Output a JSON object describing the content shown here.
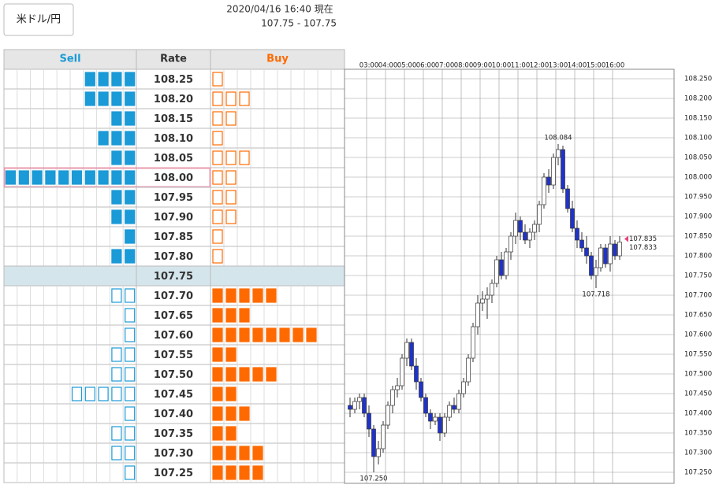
{
  "header": {
    "pair": "米ドル/円",
    "timestamp": "2020/04/16 16:40 現在",
    "rate_range": "107.75 - 107.75"
  },
  "order_book": {
    "columns": [
      "Sell",
      "Rate",
      "Buy"
    ],
    "highlighted_rate": "108.00",
    "rows": [
      {
        "rate": "108.25",
        "sell": 4,
        "buy": 1
      },
      {
        "rate": "108.20",
        "sell": 4,
        "buy": 3
      },
      {
        "rate": "108.15",
        "sell": 2,
        "buy": 2
      },
      {
        "rate": "108.10",
        "sell": 3,
        "buy": 1
      },
      {
        "rate": "108.05",
        "sell": 2,
        "buy": 3
      },
      {
        "rate": "108.00",
        "sell": 10,
        "buy": 2
      },
      {
        "rate": "107.95",
        "sell": 2,
        "buy": 2
      },
      {
        "rate": "107.90",
        "sell": 2,
        "buy": 2
      },
      {
        "rate": "107.85",
        "sell": 1,
        "buy": 1
      },
      {
        "rate": "107.80",
        "sell": 2,
        "buy": 1
      },
      {
        "rate": "107.75"
      },
      {
        "rate": "107.70",
        "sell": 2,
        "buy": 5
      },
      {
        "rate": "107.65",
        "sell": 1,
        "buy": 3
      },
      {
        "rate": "107.60",
        "sell": 1,
        "buy": 8
      },
      {
        "rate": "107.55",
        "sell": 2,
        "buy": 2
      },
      {
        "rate": "107.50",
        "sell": 2,
        "buy": 5
      },
      {
        "rate": "107.45",
        "sell": 5,
        "buy": 2
      },
      {
        "rate": "107.40",
        "sell": 1,
        "buy": 3
      },
      {
        "rate": "107.35",
        "sell": 2,
        "buy": 2
      },
      {
        "rate": "107.30",
        "sell": 2,
        "buy": 4
      },
      {
        "rate": "107.25",
        "sell": 1,
        "buy": 4
      }
    ]
  },
  "chart_data": {
    "type": "candlestick",
    "up_color": "#ffffff",
    "down_color": "#1f33cc",
    "categories": [
      null,
      null,
      null,
      null,
      "03:00",
      null,
      null,
      null,
      "04:00",
      null,
      null,
      null,
      "05:00",
      null,
      null,
      null,
      "06:00",
      null,
      null,
      null,
      "07:00",
      null,
      null,
      null,
      "08:00",
      null,
      null,
      null,
      "09:00",
      null,
      null,
      null,
      "10:00",
      null,
      null,
      null,
      "11:00",
      null,
      null,
      null,
      "12:00",
      null,
      null,
      null,
      "13:00",
      null,
      null,
      null,
      "14:00",
      null,
      null,
      null,
      "15:00",
      null,
      null,
      null,
      "16:00",
      null
    ],
    "ohlc": [
      [
        107.42,
        107.44,
        107.39,
        107.41
      ],
      [
        107.41,
        107.44,
        107.4,
        107.43
      ],
      [
        107.43,
        107.45,
        107.41,
        107.44
      ],
      [
        107.44,
        107.45,
        107.39,
        107.4
      ],
      [
        107.4,
        107.42,
        107.34,
        107.36
      ],
      [
        107.36,
        107.37,
        107.25,
        107.29
      ],
      [
        107.29,
        107.33,
        107.27,
        107.31
      ],
      [
        107.31,
        107.38,
        107.3,
        107.37
      ],
      [
        107.37,
        107.43,
        107.36,
        107.42
      ],
      [
        107.42,
        107.47,
        107.4,
        107.46
      ],
      [
        107.46,
        107.49,
        107.44,
        107.47
      ],
      [
        107.47,
        107.55,
        107.46,
        107.54
      ],
      [
        107.54,
        107.59,
        107.52,
        107.58
      ],
      [
        107.58,
        107.59,
        107.51,
        107.52
      ],
      [
        107.52,
        107.54,
        107.46,
        107.48
      ],
      [
        107.48,
        107.49,
        107.43,
        107.44
      ],
      [
        107.44,
        107.45,
        107.39,
        107.4
      ],
      [
        107.4,
        107.41,
        107.36,
        107.38
      ],
      [
        107.38,
        107.4,
        107.37,
        107.39
      ],
      [
        107.39,
        107.4,
        107.33,
        107.35
      ],
      [
        107.35,
        107.4,
        107.34,
        107.39
      ],
      [
        107.39,
        107.43,
        107.38,
        107.42
      ],
      [
        107.42,
        107.44,
        107.4,
        107.41
      ],
      [
        107.41,
        107.46,
        107.4,
        107.45
      ],
      [
        107.45,
        107.49,
        107.44,
        107.48
      ],
      [
        107.48,
        107.55,
        107.47,
        107.54
      ],
      [
        107.54,
        107.63,
        107.53,
        107.62
      ],
      [
        107.62,
        107.7,
        107.6,
        107.68
      ],
      [
        107.68,
        107.71,
        107.66,
        107.69
      ],
      [
        107.69,
        107.72,
        107.64,
        107.7
      ],
      [
        107.7,
        107.74,
        107.68,
        107.73
      ],
      [
        107.73,
        107.8,
        107.72,
        107.79
      ],
      [
        107.79,
        107.81,
        107.74,
        107.75
      ],
      [
        107.75,
        107.82,
        107.74,
        107.81
      ],
      [
        107.81,
        107.86,
        107.79,
        107.85
      ],
      [
        107.85,
        107.91,
        107.83,
        107.89
      ],
      [
        107.89,
        107.9,
        107.84,
        107.86
      ],
      [
        107.86,
        107.88,
        107.83,
        107.84
      ],
      [
        107.84,
        107.87,
        107.82,
        107.86
      ],
      [
        107.86,
        107.89,
        107.84,
        107.88
      ],
      [
        107.88,
        107.94,
        107.86,
        107.93
      ],
      [
        107.93,
        108.01,
        107.92,
        108.0
      ],
      [
        108.0,
        108.02,
        107.96,
        107.98
      ],
      [
        107.98,
        108.06,
        107.97,
        108.05
      ],
      [
        108.05,
        108.084,
        108.03,
        108.07
      ],
      [
        108.07,
        108.08,
        107.96,
        107.97
      ],
      [
        107.97,
        107.98,
        107.91,
        107.92
      ],
      [
        107.92,
        107.94,
        107.86,
        107.87
      ],
      [
        107.87,
        107.89,
        107.82,
        107.84
      ],
      [
        107.84,
        107.86,
        107.81,
        107.82
      ],
      [
        107.82,
        107.85,
        107.78,
        107.8
      ],
      [
        107.8,
        107.81,
        107.74,
        107.75
      ],
      [
        107.75,
        107.79,
        107.718,
        107.77
      ],
      [
        107.77,
        107.83,
        107.76,
        107.82
      ],
      [
        107.82,
        107.83,
        107.77,
        107.78
      ],
      [
        107.78,
        107.85,
        107.76,
        107.83
      ],
      [
        107.83,
        107.84,
        107.79,
        107.8
      ],
      [
        107.8,
        107.85,
        107.79,
        107.835
      ]
    ],
    "ylim": [
      107.25,
      108.25
    ],
    "yticks": [
      {
        "value": 107.25,
        "label": "107.250"
      },
      {
        "value": 107.3,
        "label": "107.300"
      },
      {
        "value": 107.35,
        "label": "107.350"
      },
      {
        "value": 107.4,
        "label": "107.400"
      },
      {
        "value": 107.45,
        "label": "107.450"
      },
      {
        "value": 107.5,
        "label": "107.500"
      },
      {
        "value": 107.55,
        "label": "107.550"
      },
      {
        "value": 107.6,
        "label": "107.600"
      },
      {
        "value": 107.65,
        "label": "107.650"
      },
      {
        "value": 107.7,
        "label": "107.700"
      },
      {
        "value": 107.75,
        "label": "107.750"
      },
      {
        "value": 107.8,
        "label": "107.800"
      },
      {
        "value": 107.85,
        "label": "107.850"
      },
      {
        "value": 107.9,
        "label": "107.900"
      },
      {
        "value": 107.95,
        "label": "107.950"
      },
      {
        "value": 108,
        "label": "108.000"
      },
      {
        "value": 108.05,
        "label": "108.050"
      },
      {
        "value": 108.1,
        "label": "108.100"
      },
      {
        "value": 108.15,
        "label": "108.150"
      },
      {
        "value": 108.2,
        "label": "108.200"
      },
      {
        "value": 108.25,
        "label": "108.250"
      }
    ],
    "grid": true,
    "annotations": [
      {
        "value": 108.084,
        "label": "108.084",
        "color": "#f08030"
      },
      {
        "value": 107.718,
        "label": "107.718",
        "color": "#2aa02a"
      },
      {
        "value": 107.25,
        "label": "107.250",
        "color": "#2aa02a"
      },
      {
        "value": 107.835,
        "label": "107.835",
        "color": "#e8407a"
      },
      {
        "value": 107.833,
        "label": "107.833",
        "color": "#1aa7d8"
      }
    ]
  }
}
